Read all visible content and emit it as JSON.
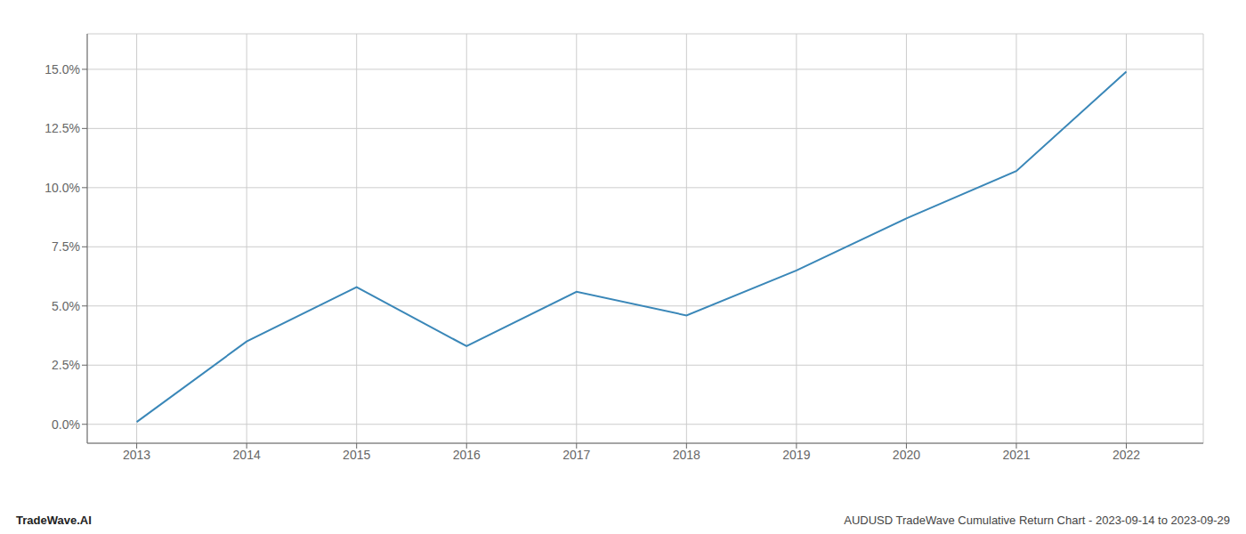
{
  "chart_data": {
    "type": "line",
    "x": [
      2013,
      2014,
      2015,
      2016,
      2017,
      2018,
      2019,
      2020,
      2021,
      2022
    ],
    "values": [
      0.001,
      0.035,
      0.058,
      0.033,
      0.056,
      0.046,
      0.065,
      0.087,
      0.107,
      0.149
    ],
    "color": "#3a87b8",
    "xlim": [
      2012.55,
      2022.7
    ],
    "xticks": [
      2013,
      2014,
      2015,
      2016,
      2017,
      2018,
      2019,
      2020,
      2021,
      2022
    ],
    "ylim": [
      -0.008,
      0.165
    ],
    "yticks": [
      {
        "value": 0.0,
        "label": "0.0%"
      },
      {
        "value": 0.025,
        "label": "2.5%"
      },
      {
        "value": 0.05,
        "label": "5.0%"
      },
      {
        "value": 0.075,
        "label": "7.5%"
      },
      {
        "value": 0.1,
        "label": "10.0%"
      },
      {
        "value": 0.125,
        "label": "12.5%"
      },
      {
        "value": 0.15,
        "label": "15.0%"
      }
    ],
    "grid": true,
    "annotations": [
      "TradeWave.AI",
      "AUDUSD TradeWave Cumulative Return Chart - 2023-09-14 to 2023-09-29"
    ]
  }
}
